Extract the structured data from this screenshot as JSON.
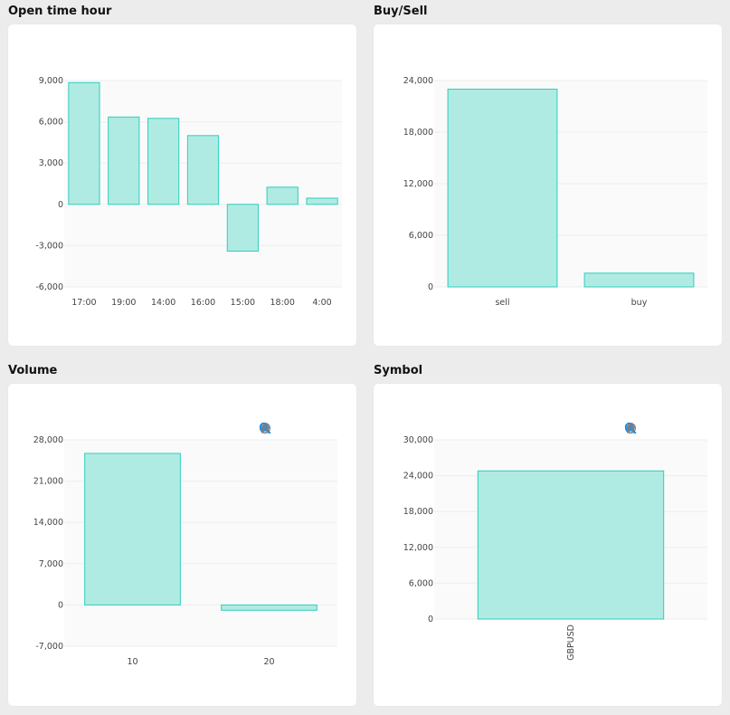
{
  "panels": [
    {
      "title": "Open time hour",
      "has_toolbar": false,
      "chart_data": {
        "type": "bar",
        "categories": [
          "17:00",
          "19:00",
          "14:00",
          "16:00",
          "15:00",
          "18:00",
          "4:00"
        ],
        "values": [
          8850,
          6350,
          6250,
          5000,
          -3400,
          1250,
          450
        ],
        "ylim": [
          -6000,
          9000
        ],
        "yticks": [
          9000,
          6000,
          3000,
          0,
          -3000,
          -6000
        ],
        "ytick_labels": [
          "9,000",
          "6,000",
          "3,000",
          "0",
          "-3,000",
          "-6,000"
        ],
        "grid": true
      }
    },
    {
      "title": "Buy/Sell",
      "has_toolbar": false,
      "chart_data": {
        "type": "bar",
        "categories": [
          "sell",
          "buy"
        ],
        "values": [
          23000,
          1600
        ],
        "ylim": [
          0,
          24000
        ],
        "yticks": [
          24000,
          18000,
          12000,
          6000,
          0
        ],
        "ytick_labels": [
          "24,000",
          "18,000",
          "12,000",
          "6,000",
          "0"
        ],
        "grid": true
      }
    },
    {
      "title": "Volume",
      "has_toolbar": true,
      "chart_data": {
        "type": "bar",
        "categories": [
          "10",
          "20"
        ],
        "values": [
          25700,
          -900
        ],
        "ylim": [
          -7000,
          28000
        ],
        "yticks": [
          28000,
          21000,
          14000,
          7000,
          0,
          -7000
        ],
        "ytick_labels": [
          "28,000",
          "21,000",
          "14,000",
          "7,000",
          "0",
          "-7,000"
        ],
        "grid": true
      }
    },
    {
      "title": "Symbol",
      "has_toolbar": true,
      "chart_data": {
        "type": "bar",
        "categories": [
          "GBPUSD"
        ],
        "values": [
          24800
        ],
        "ylim": [
          0,
          30000
        ],
        "yticks": [
          30000,
          24000,
          18000,
          12000,
          6000,
          0
        ],
        "ytick_labels": [
          "30,000",
          "24,000",
          "18,000",
          "12,000",
          "6,000",
          "0"
        ],
        "grid": true,
        "xtick_rotation": "vertical"
      }
    }
  ],
  "toolbar_icons": [
    "zoom-in-icon",
    "zoom-out-icon",
    "selection-zoom-icon",
    "pan-hand-icon",
    "reset-home-icon"
  ],
  "colors": {
    "bar_fill": "#b0ebe3",
    "bar_stroke": "#2ecfbc",
    "grid": "#eeeeee",
    "plot_bg": "#fafafa",
    "icon_gray": "#6e8192",
    "icon_active": "#008ffb"
  }
}
